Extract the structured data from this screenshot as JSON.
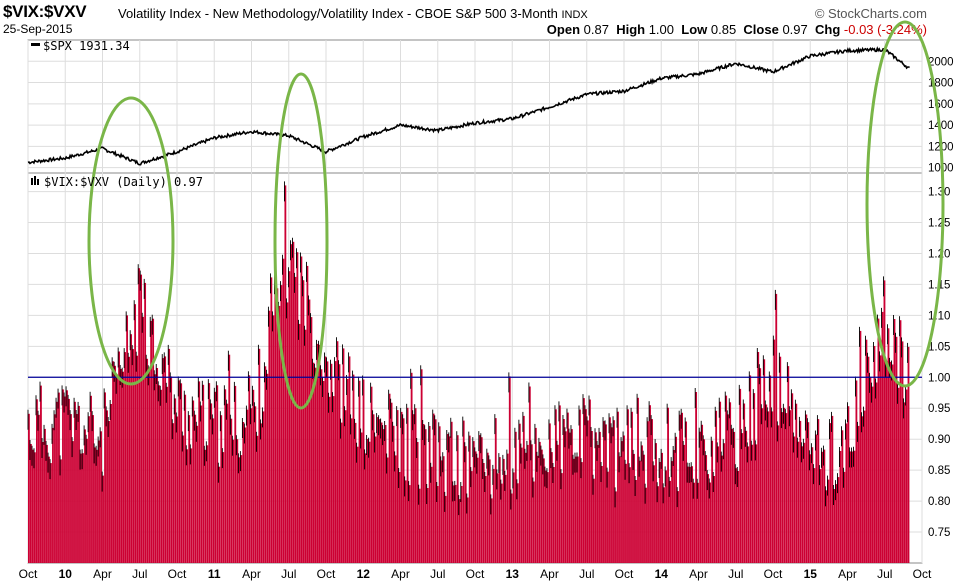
{
  "header": {
    "symbol": "$VIX:$VXV",
    "description": "Volatility Index - New Methodology/Volatility Index - CBOE S&P 500 3-Month",
    "exchange": "INDX",
    "date": "25-Sep-2015",
    "brand": "© StockCharts.com",
    "open_label": "Open",
    "open": "0.87",
    "high_label": "High",
    "high": "1.00",
    "low_label": "Low",
    "low": "0.85",
    "close_label": "Close",
    "close": "0.97",
    "chg_label": "Chg",
    "chg": "-0.03 (-3.24%)",
    "chg_color": "#cc0000"
  },
  "colors": {
    "bar_fill": "#cc0033",
    "bar_edge": "#000000",
    "spx_line": "#000000",
    "reference_line": "#000099",
    "ellipse": "#7ab648",
    "grid": "#dddddd"
  },
  "chart_data": [
    {
      "type": "line",
      "legend": "$SPX 1931.34",
      "ylim": [
        950,
        2200
      ],
      "yticks": [
        "1000",
        "1200",
        "1400",
        "1600",
        "1800",
        "2000"
      ],
      "x": [
        "2009-10",
        "2010-01",
        "2010-04",
        "2010-07",
        "2010-10",
        "2011-01",
        "2011-04",
        "2011-07",
        "2011-10",
        "2012-01",
        "2012-04",
        "2012-07",
        "2012-10",
        "2013-01",
        "2013-04",
        "2013-07",
        "2013-10",
        "2014-01",
        "2014-04",
        "2014-07",
        "2014-10",
        "2015-01",
        "2015-04",
        "2015-07",
        "2015-09"
      ],
      "series": [
        {
          "values": [
            1050,
            1090,
            1180,
            1040,
            1150,
            1280,
            1340,
            1300,
            1150,
            1290,
            1400,
            1350,
            1420,
            1460,
            1570,
            1690,
            1720,
            1840,
            1880,
            1980,
            1900,
            2050,
            2100,
            2110,
            1930
          ]
        }
      ]
    },
    {
      "type": "bar",
      "legend": "$VIX:$VXV (Daily) 0.97",
      "ylim": [
        0.7,
        1.33
      ],
      "yticks": [
        "0.75",
        "0.80",
        "0.85",
        "0.90",
        "0.95",
        "1.00",
        "1.05",
        "1.10",
        "1.15",
        "1.20",
        "1.25",
        "1.30"
      ],
      "reference_line": 1.0,
      "x_labels": [
        "Oct",
        "10",
        "Apr",
        "Jul",
        "Oct",
        "11",
        "Apr",
        "Jul",
        "Oct",
        "12",
        "Apr",
        "Jul",
        "Oct",
        "13",
        "Apr",
        "Jul",
        "Oct",
        "14",
        "Apr",
        "Jul",
        "Oct",
        "15",
        "Apr",
        "Jul",
        "Oct"
      ],
      "x": [
        "2009-10",
        "2010-01",
        "2010-04",
        "2010-07",
        "2010-10",
        "2011-01",
        "2011-04",
        "2011-07",
        "2011-10",
        "2012-01",
        "2012-04",
        "2012-07",
        "2012-10",
        "2013-01",
        "2013-04",
        "2013-07",
        "2013-10",
        "2014-01",
        "2014-04",
        "2014-07",
        "2014-10",
        "2015-01",
        "2015-04",
        "2015-07",
        "2015-09"
      ],
      "series": [
        {
          "values": [
            0.92,
            0.93,
            0.9,
            1.12,
            0.95,
            0.92,
            0.93,
            1.2,
            1.03,
            0.93,
            0.9,
            0.87,
            0.86,
            0.87,
            0.89,
            0.9,
            0.88,
            0.89,
            0.88,
            0.91,
            1.0,
            0.87,
            0.89,
            1.1,
            0.97
          ]
        }
      ]
    }
  ]
}
